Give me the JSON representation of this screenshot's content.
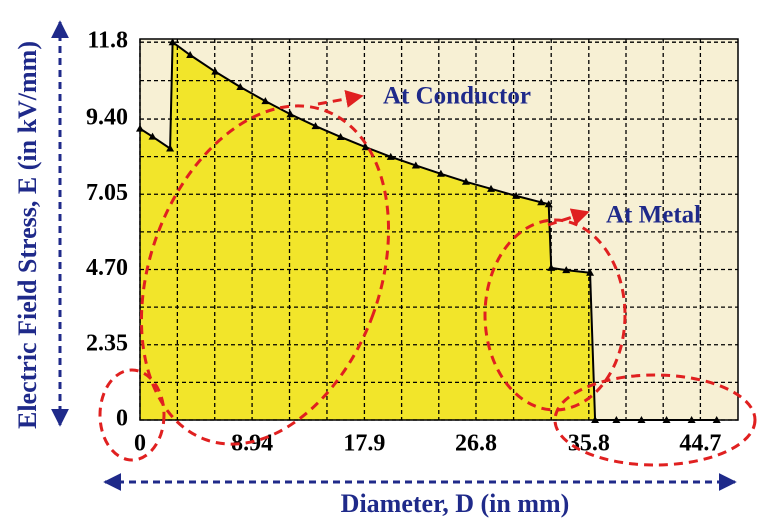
{
  "chart_data": {
    "type": "area",
    "x_label": "Diameter, D (in mm)",
    "y_label": "Electric Field Stress, E (in kV/mm)",
    "x": [
      0,
      1,
      2.4,
      2.6,
      4,
      6,
      8,
      10,
      12,
      14,
      16,
      18,
      20,
      22,
      24,
      26,
      28,
      30,
      32,
      32.6,
      32.8,
      34,
      35.9,
      36.3,
      38,
      40,
      42,
      44,
      46
    ],
    "values": [
      9.1,
      8.85,
      8.48,
      11.8,
      11.4,
      10.88,
      10.4,
      9.96,
      9.55,
      9.18,
      8.84,
      8.52,
      8.22,
      7.95,
      7.69,
      7.44,
      7.22,
      7.0,
      6.8,
      6.74,
      4.75,
      4.68,
      4.6,
      0,
      0,
      0,
      0,
      0,
      0
    ],
    "color": "#f2e52a",
    "line_color": "#000000",
    "background": "#f7f0d4",
    "xlim": [
      0,
      47.7
    ],
    "ylim": [
      0,
      11.9
    ],
    "xticks": [
      0,
      8.94,
      17.9,
      26.8,
      35.8,
      44.7
    ],
    "yticks": [
      0,
      2.35,
      {
        "value": 4.7,
        "label": "4.70"
      },
      7.05,
      {
        "value": 9.4,
        "label": "9.40"
      },
      11.8
    ],
    "grid": true,
    "annotations": [
      "At Conductor",
      "At Metal"
    ]
  }
}
